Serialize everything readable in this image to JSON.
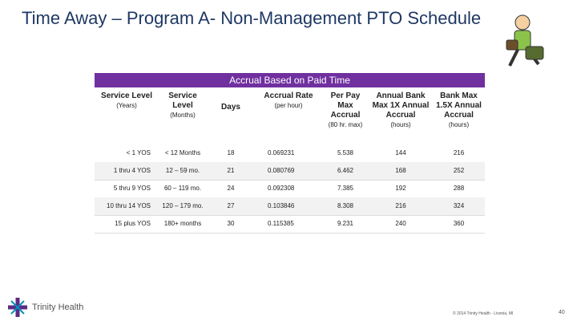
{
  "title": "Time Away – Program A- Non-Management PTO Schedule",
  "table": {
    "banner": "Accrual Based on Paid Time",
    "columns": [
      {
        "main": "Service Level",
        "sub": "(Years)"
      },
      {
        "main": "Service Level",
        "sub": "(Months)"
      },
      {
        "main": "Days"
      },
      {
        "main": "Accrual Rate",
        "sub": "(per hour)"
      },
      {
        "main": "Per Pay Max Accrual",
        "sub": "(80 hr. max)"
      },
      {
        "main": "Annual Bank Max 1X Annual Accrual",
        "sub": "(hours)"
      },
      {
        "main": "Bank Max 1.5X Annual Accrual",
        "sub": "(hours)"
      }
    ],
    "rows": [
      [
        "< 1 YOS",
        "< 12 Months",
        "18",
        "0.069231",
        "5.538",
        "144",
        "216"
      ],
      [
        "1 thru 4 YOS",
        "12 – 59 mo.",
        "21",
        "0.080769",
        "6.462",
        "168",
        "252"
      ],
      [
        "5 thru 9 YOS",
        "60 – 119 mo.",
        "24",
        "0.092308",
        "7.385",
        "192",
        "288"
      ],
      [
        "10 thru 14 YOS",
        "120 – 179 mo.",
        "27",
        "0.103846",
        "8.308",
        "216",
        "324"
      ],
      [
        "15 plus YOS",
        "180+ months",
        "30",
        "0.115385",
        "9.231",
        "240",
        "360"
      ]
    ]
  },
  "footer": {
    "logo": "Trinity Health",
    "copyright": "© 2014 Trinity Health - Livonia, MI",
    "page": "40"
  }
}
